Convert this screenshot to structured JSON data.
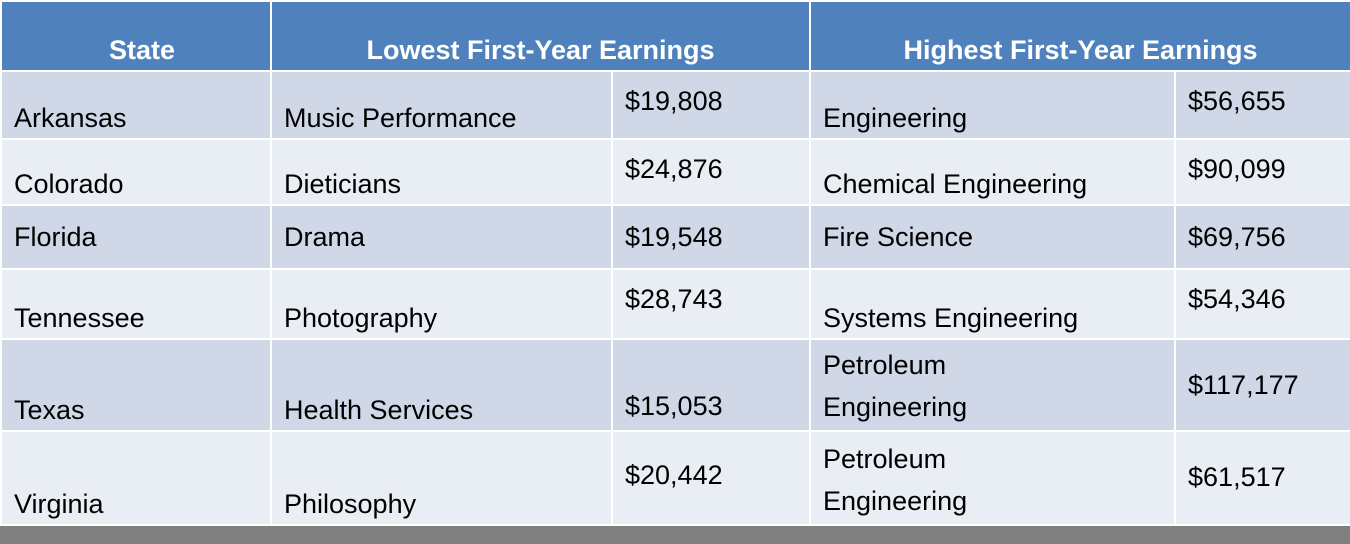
{
  "header": {
    "state": "State",
    "lowest": "Lowest First-Year Earnings",
    "highest": "Highest First-Year Earnings"
  },
  "rows": [
    {
      "state": "Arkansas",
      "low_major": "Music Performance",
      "low_amount": "$19,808",
      "high_major": "Engineering",
      "high_amount": "$56,655"
    },
    {
      "state": "Colorado",
      "low_major": "Dieticians",
      "low_amount": "$24,876",
      "high_major": "Chemical Engineering",
      "high_amount": "$90,099"
    },
    {
      "state": "Florida",
      "low_major": "Drama",
      "low_amount": "$19,548",
      "high_major": "Fire Science",
      "high_amount": "$69,756"
    },
    {
      "state": "Tennessee",
      "low_major": "Photography",
      "low_amount": "$28,743",
      "high_major": "Systems Engineering",
      "high_amount": "$54,346"
    },
    {
      "state": "Texas",
      "low_major": "Health Services",
      "low_amount": "$15,053",
      "high_major": "Petroleum Engineering",
      "high_amount": "$117,177"
    },
    {
      "state": "Virginia",
      "low_major": "Philosophy",
      "low_amount": "$20,442",
      "high_major": "Petroleum Engineering",
      "high_amount": "$61,517"
    }
  ],
  "colors": {
    "header_bg": "#4f81bd",
    "row_odd": "#d0d8e8",
    "row_even": "#e9edf4",
    "bottom_bar": "#808080"
  }
}
